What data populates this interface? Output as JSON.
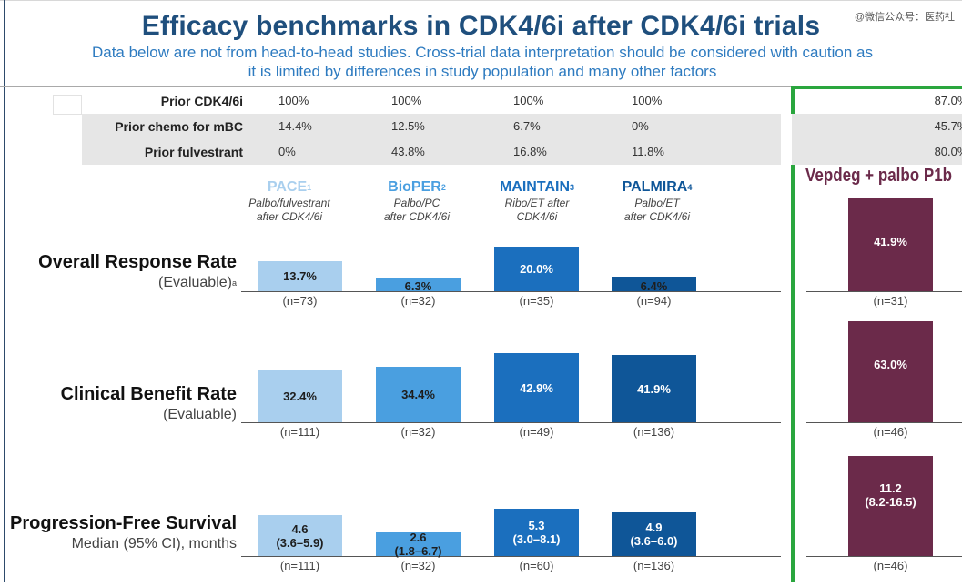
{
  "header": {
    "title": "Efficacy benchmarks in CDK4/6i after CDK4/6i trials",
    "watermark": "@微信公众号：医药社",
    "subtitle": "Data below are not from head-to-head studies. Cross-trial data interpretation should be considered with caution as it is limited by differences in study population and many other factors"
  },
  "prior_rows": [
    {
      "label": "Prior CDK4/6i",
      "values": [
        "100%",
        "100%",
        "100%",
        "100%",
        "87.0%"
      ]
    },
    {
      "label": "Prior chemo for mBC",
      "values": [
        "14.4%",
        "12.5%",
        "6.7%",
        "0%",
        "45.7%"
      ]
    },
    {
      "label": "Prior fulvestrant",
      "values": [
        "0%",
        "43.8%",
        "16.8%",
        "11.8%",
        "80.0%"
      ]
    }
  ],
  "studies": [
    {
      "name": "PACE",
      "sup": "1",
      "desc1": "Palbo/fulvestrant",
      "desc2": "after CDK4/6i",
      "color": "#a9cfee"
    },
    {
      "name": "BioPER",
      "sup": "2",
      "desc1": "Palbo/PC",
      "desc2": "after CDK4/6i",
      "color": "#4a9fe0"
    },
    {
      "name": "MAINTAIN",
      "sup": "3",
      "desc1": "Ribo/ET after",
      "desc2": "CDK4/6i",
      "color": "#1b6fbe"
    },
    {
      "name": "PALMIRA",
      "sup": "4",
      "desc1": "Palbo/ET",
      "desc2": "after CDK4/6i",
      "color": "#0f5698"
    },
    {
      "name": "Vepdeg + palbo P1b",
      "sup": "",
      "desc1": "",
      "desc2": "",
      "color": "#6b2a4a"
    }
  ],
  "metrics": [
    {
      "main": "Overall Response Rate",
      "sub": "(Evaluable)",
      "sup": "a"
    },
    {
      "main": "Clinical Benefit Rate",
      "sub": "(Evaluable)",
      "sup": ""
    },
    {
      "main": "Progression-Free Survival",
      "sub": "Median (95% CI), months",
      "sup": ""
    }
  ],
  "chart_data": [
    {
      "type": "bar",
      "title": "Overall Response Rate",
      "categories": [
        "PACE",
        "BioPER",
        "MAINTAIN",
        "PALMIRA",
        "Vepdeg + palbo P1b"
      ],
      "values": [
        13.7,
        6.3,
        20.0,
        6.4,
        41.9
      ],
      "value_labels": [
        "13.7%",
        "6.3%",
        "20.0%",
        "6.4%",
        "41.9%"
      ],
      "n_labels": [
        "(n=73)",
        "(n=32)",
        "(n=35)",
        "(n=94)",
        "(n=31)"
      ]
    },
    {
      "type": "bar",
      "title": "Clinical Benefit Rate",
      "categories": [
        "PACE",
        "BioPER",
        "MAINTAIN",
        "PALMIRA",
        "Vepdeg + palbo P1b"
      ],
      "values": [
        32.4,
        34.4,
        42.9,
        41.9,
        63.0
      ],
      "value_labels": [
        "32.4%",
        "34.4%",
        "42.9%",
        "41.9%",
        "63.0%"
      ],
      "n_labels": [
        "(n=111)",
        "(n=32)",
        "(n=49)",
        "(n=136)",
        "(n=46)"
      ]
    },
    {
      "type": "bar",
      "title": "Progression-Free Survival",
      "categories": [
        "PACE",
        "BioPER",
        "MAINTAIN",
        "PALMIRA",
        "Vepdeg + palbo P1b"
      ],
      "values": [
        4.6,
        2.6,
        5.3,
        4.9,
        11.2
      ],
      "value_labels": [
        "4.6\n(3.6–5.9)",
        "2.6\n(1.8–6.7)",
        "5.3\n(3.0–8.1)",
        "4.9\n(3.6–6.0)",
        "11.2\n(8.2-16.5)"
      ],
      "n_labels": [
        "(n=111)",
        "(n=32)",
        "(n=60)",
        "(n=136)",
        "(n=46)"
      ]
    }
  ]
}
